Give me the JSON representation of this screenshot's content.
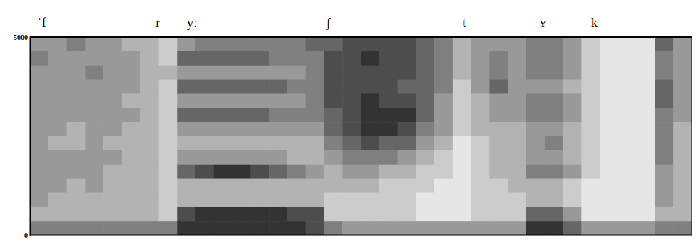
{
  "chart_data": {
    "type": "heatmap",
    "xlim": [
      0,
      0.9
    ],
    "ylim": [
      0,
      5000
    ],
    "yticks": [
      0,
      5000
    ],
    "tick_labels": "y",
    "grid": false,
    "segments": [
      {
        "label": "ˈf",
        "x": 0.01
      },
      {
        "label": "r",
        "x": 0.171
      },
      {
        "label": "yː",
        "x": 0.213
      },
      {
        "label": "ʃ",
        "x": 0.403
      },
      {
        "label": "t",
        "x": 0.588
      },
      {
        "label": "ʏ",
        "x": 0.693
      },
      {
        "label": "k",
        "x": 0.763
      }
    ],
    "cell_range": [
      0,
      9
    ],
    "cells": [
      [
        4,
        5,
        4,
        4,
        4,
        4,
        4,
        4,
        4,
        4,
        4,
        4,
        3,
        5
      ],
      [
        4,
        4,
        4,
        4,
        4,
        4,
        4,
        3,
        4,
        4,
        4,
        3,
        3,
        5
      ],
      [
        5,
        4,
        4,
        4,
        4,
        4,
        3,
        3,
        4,
        4,
        3,
        3,
        3,
        5
      ],
      [
        4,
        4,
        5,
        4,
        4,
        4,
        4,
        4,
        4,
        4,
        4,
        3,
        3,
        5
      ],
      [
        4,
        4,
        4,
        4,
        4,
        4,
        4,
        3,
        4,
        3,
        3,
        3,
        3,
        5
      ],
      [
        3,
        4,
        4,
        4,
        3,
        4,
        3,
        3,
        3,
        3,
        3,
        3,
        3,
        5
      ],
      [
        3,
        3,
        3,
        3,
        3,
        3,
        3,
        3,
        3,
        3,
        3,
        3,
        3,
        5
      ],
      [
        2,
        2,
        3,
        2,
        2,
        2,
        2,
        2,
        2,
        2,
        2,
        2,
        2,
        5
      ],
      [
        4,
        6,
        4,
        6,
        4,
        6,
        4,
        3,
        4,
        6,
        3,
        3,
        7,
        8
      ],
      [
        5,
        6,
        4,
        6,
        4,
        6,
        4,
        3,
        4,
        7,
        3,
        3,
        8,
        8
      ],
      [
        5,
        6,
        4,
        6,
        4,
        6,
        4,
        3,
        4,
        8,
        3,
        3,
        8,
        8
      ],
      [
        5,
        6,
        4,
        6,
        4,
        6,
        4,
        3,
        4,
        8,
        3,
        3,
        8,
        8
      ],
      [
        5,
        6,
        4,
        6,
        4,
        6,
        4,
        3,
        4,
        7,
        3,
        3,
        8,
        8
      ],
      [
        5,
        5,
        4,
        6,
        4,
        5,
        4,
        3,
        4,
        6,
        3,
        3,
        8,
        8
      ],
      [
        5,
        5,
        4,
        5,
        4,
        5,
        4,
        3,
        3,
        5,
        3,
        3,
        7,
        8
      ],
      [
        6,
        5,
        5,
        5,
        5,
        5,
        4,
        3,
        3,
        4,
        3,
        3,
        7,
        7
      ],
      [
        6,
        7,
        7,
        7,
        7,
        6,
        6,
        5,
        4,
        3,
        3,
        2,
        2,
        5
      ],
      [
        7,
        7,
        7,
        7,
        7,
        7,
        7,
        6,
        5,
        4,
        3,
        2,
        2,
        4
      ],
      [
        7,
        8,
        7,
        7,
        8,
        8,
        8,
        7,
        5,
        4,
        3,
        2,
        2,
        4
      ],
      [
        7,
        7,
        7,
        7,
        7,
        8,
        8,
        6,
        5,
        3,
        2,
        2,
        2,
        4
      ],
      [
        7,
        7,
        7,
        6,
        7,
        8,
        7,
        6,
        4,
        3,
        2,
        2,
        2,
        4
      ],
      [
        6,
        6,
        6,
        6,
        6,
        6,
        5,
        4,
        3,
        2,
        2,
        1,
        1,
        4
      ],
      [
        5,
        5,
        5,
        5,
        4,
        4,
        4,
        3,
        2,
        2,
        1,
        1,
        1,
        4
      ],
      [
        3,
        3,
        3,
        2,
        2,
        2,
        2,
        1,
        1,
        1,
        1,
        1,
        1,
        4
      ],
      [
        4,
        4,
        4,
        4,
        3,
        3,
        3,
        2,
        2,
        2,
        2,
        2,
        2,
        4
      ],
      [
        4,
        5,
        5,
        6,
        4,
        4,
        3,
        3,
        3,
        3,
        2,
        2,
        2,
        4
      ],
      [
        4,
        4,
        4,
        4,
        4,
        4,
        3,
        3,
        3,
        3,
        3,
        2,
        2,
        4
      ],
      [
        5,
        5,
        5,
        4,
        5,
        5,
        4,
        4,
        4,
        5,
        3,
        3,
        6,
        8
      ],
      [
        5,
        5,
        5,
        4,
        5,
        5,
        4,
        5,
        4,
        5,
        3,
        3,
        6,
        8
      ],
      [
        4,
        4,
        4,
        3,
        4,
        4,
        3,
        3,
        3,
        4,
        2,
        2,
        4,
        6
      ],
      [
        2,
        2,
        2,
        2,
        2,
        2,
        2,
        2,
        2,
        2,
        1,
        1,
        1,
        4
      ],
      [
        1,
        1,
        1,
        1,
        1,
        1,
        1,
        1,
        1,
        1,
        1,
        1,
        1,
        4
      ],
      [
        1,
        1,
        1,
        1,
        1,
        1,
        1,
        1,
        1,
        1,
        1,
        1,
        1,
        4
      ],
      [
        1,
        1,
        1,
        1,
        1,
        1,
        1,
        1,
        1,
        1,
        1,
        1,
        1,
        4
      ],
      [
        6,
        5,
        5,
        6,
        6,
        5,
        5,
        5,
        5,
        4,
        4,
        4,
        3,
        5
      ],
      [
        4,
        4,
        4,
        4,
        4,
        4,
        3,
        3,
        3,
        3,
        3,
        3,
        3,
        5
      ]
    ]
  }
}
